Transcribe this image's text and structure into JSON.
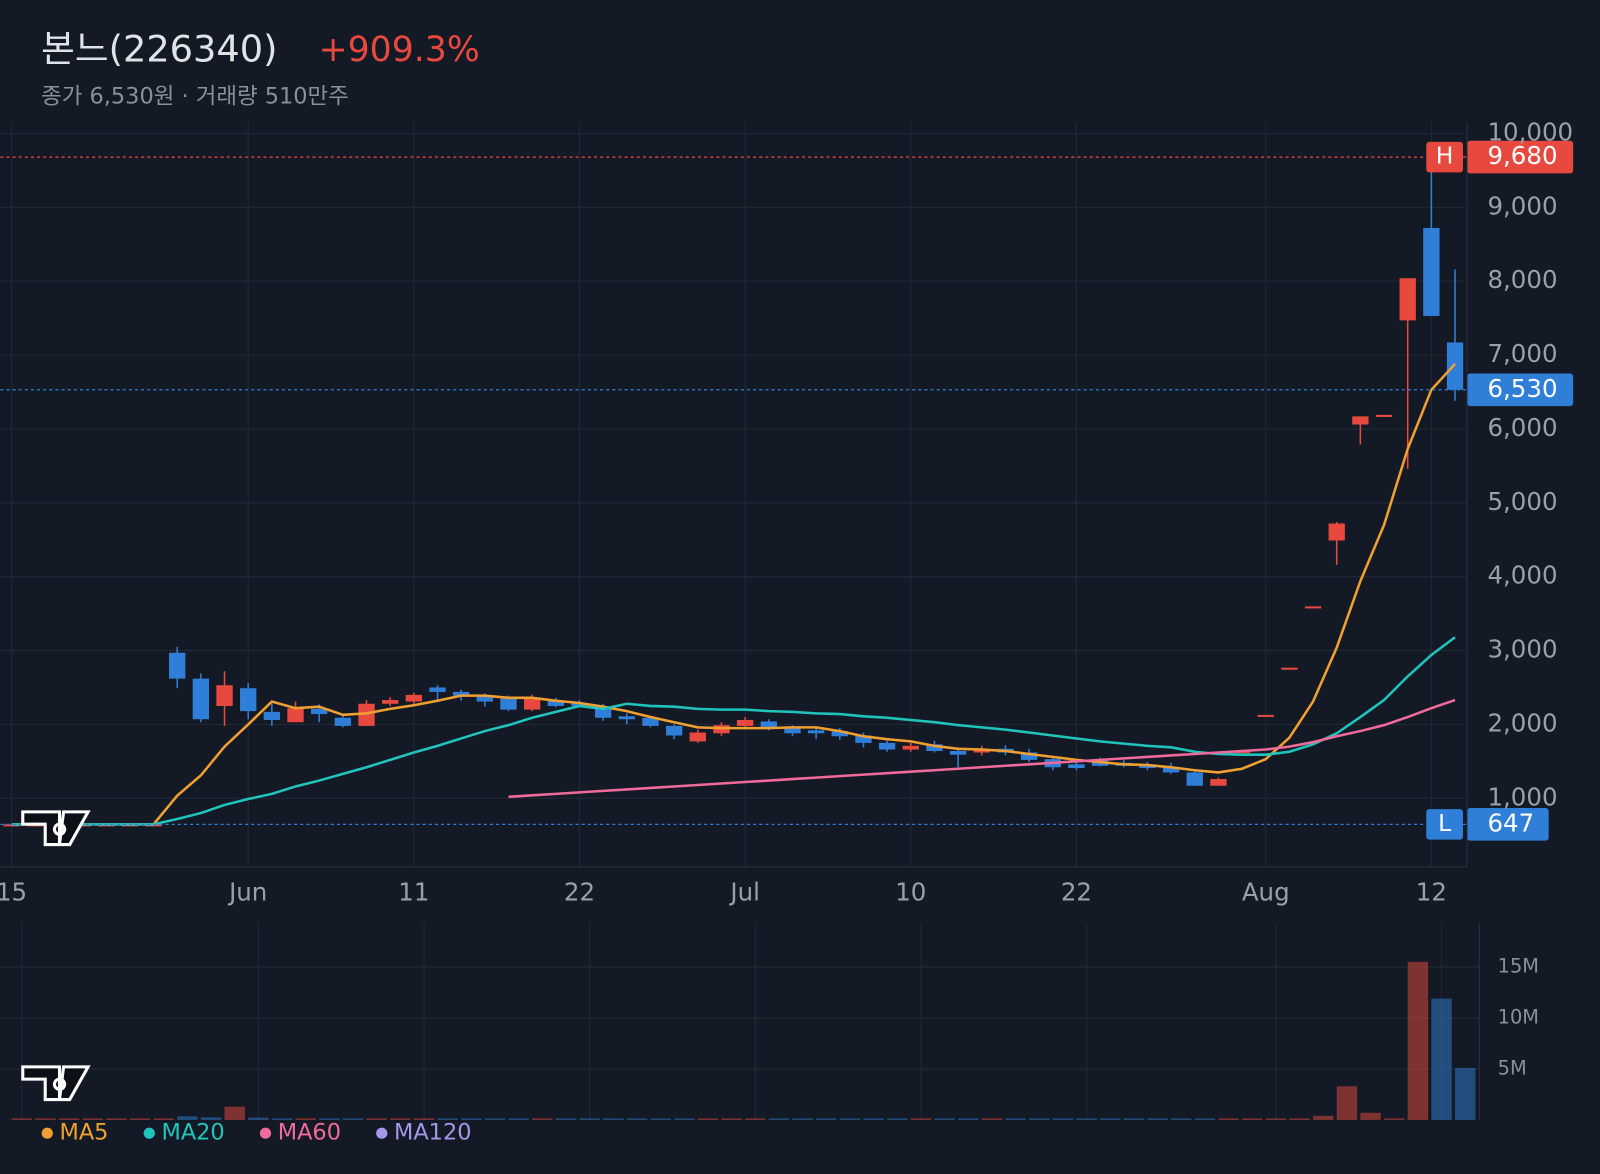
{
  "chart_data": [
    {
      "type": "candlestick",
      "title": "본느(226340)",
      "change": "+909.3%",
      "subtitle": "종가 6,530원 · 거래량 510만주",
      "categories": [
        "15",
        null,
        null,
        null,
        null,
        null,
        null,
        null,
        null,
        null,
        "Jun",
        null,
        null,
        null,
        null,
        null,
        null,
        "11",
        null,
        null,
        null,
        null,
        null,
        null,
        "22",
        null,
        null,
        null,
        null,
        null,
        null,
        "Jul",
        null,
        null,
        null,
        null,
        null,
        null,
        "10",
        null,
        null,
        null,
        null,
        null,
        null,
        "22",
        null,
        null,
        null,
        null,
        null,
        null,
        null,
        "Aug",
        null,
        null,
        null,
        null,
        null,
        null,
        "12",
        null
      ],
      "open": [
        647,
        647,
        647,
        647,
        647,
        647,
        647,
        2970,
        2620,
        2250,
        2490,
        2170,
        2030,
        2210,
        2090,
        1980,
        2280,
        2310,
        2500,
        2440,
        2380,
        2350,
        2200,
        2320,
        2290,
        2240,
        2110,
        2090,
        1980,
        1770,
        1880,
        1980,
        2040,
        1950,
        1920,
        1910,
        1850,
        1750,
        1660,
        1730,
        1640,
        1620,
        1670,
        1620,
        1530,
        1460,
        1510,
        1480,
        1460,
        1420,
        1350,
        1170,
        1638,
        2129,
        2768,
        3598,
        4490,
        6060,
        6170,
        7470,
        8720,
        7170
      ],
      "high": [
        647,
        647,
        647,
        647,
        647,
        647,
        647,
        3050,
        2690,
        2720,
        2560,
        2280,
        2310,
        2270,
        2140,
        2330,
        2370,
        2430,
        2530,
        2470,
        2420,
        2390,
        2400,
        2360,
        2330,
        2280,
        2150,
        2110,
        2000,
        1930,
        2030,
        2100,
        2070,
        1990,
        1960,
        1950,
        1890,
        1780,
        1750,
        1780,
        1680,
        1710,
        1720,
        1670,
        1570,
        1500,
        1550,
        1520,
        1490,
        1480,
        1380,
        1280,
        1638,
        2129,
        2768,
        3598,
        4740,
        6170,
        6190,
        8040,
        9680,
        8160
      ],
      "low": [
        647,
        647,
        647,
        647,
        647,
        647,
        647,
        2490,
        2030,
        1980,
        2070,
        1980,
        2030,
        2030,
        1960,
        1980,
        2250,
        2280,
        2320,
        2320,
        2240,
        2180,
        2180,
        2230,
        2230,
        2050,
        2000,
        1960,
        1800,
        1750,
        1840,
        1940,
        1920,
        1840,
        1800,
        1790,
        1690,
        1630,
        1630,
        1620,
        1420,
        1580,
        1580,
        1490,
        1380,
        1380,
        1430,
        1420,
        1380,
        1330,
        1170,
        1170,
        1638,
        2129,
        2768,
        3598,
        4160,
        5790,
        6160,
        5460,
        7530,
        6380
      ],
      "close": [
        647,
        647,
        647,
        647,
        647,
        647,
        647,
        2620,
        2070,
        2530,
        2180,
        2060,
        2220,
        2140,
        1980,
        2280,
        2330,
        2400,
        2440,
        2390,
        2310,
        2200,
        2360,
        2250,
        2250,
        2090,
        2070,
        1980,
        1850,
        1890,
        1990,
        2060,
        1950,
        1880,
        1880,
        1840,
        1750,
        1660,
        1710,
        1640,
        1590,
        1670,
        1620,
        1520,
        1420,
        1410,
        1440,
        1440,
        1410,
        1350,
        1170,
        1260,
        1638,
        2129,
        2768,
        3598,
        4720,
        6170,
        6190,
        8040,
        7530,
        6530
      ],
      "up_color": "#e8493f",
      "down_color": "#2f7fd8",
      "ylim": [
        70,
        10150
      ],
      "yticks": [
        {
          "value": 1000,
          "label": "1,000"
        },
        {
          "value": 2000,
          "label": "2,000"
        },
        {
          "value": 3000,
          "label": "3,000"
        },
        {
          "value": 4000,
          "label": "4,000"
        },
        {
          "value": 5000,
          "label": "5,000"
        },
        {
          "value": 6000,
          "label": "6,000"
        },
        {
          "value": 7000,
          "label": "7,000"
        },
        {
          "value": 8000,
          "label": "8,000"
        },
        {
          "value": 9000,
          "label": "9,000"
        },
        {
          "value": 10000,
          "label": "10,000"
        }
      ],
      "grid": true,
      "high_line": {
        "value": 9680,
        "label": "9,680",
        "marker": "H",
        "color": "#e8493f"
      },
      "low_line": {
        "value": 647,
        "label": "647",
        "marker": "L",
        "color": "#2f7fd8"
      },
      "last_line": {
        "value": 6530,
        "label": "6,530",
        "color": "#2f7fd8"
      },
      "series": [
        {
          "name": "MA5",
          "color": "#f0a030",
          "values": [
            647,
            647,
            647,
            647,
            647,
            647,
            647,
            1036,
            1310,
            1700,
            2000,
            2310,
            2220,
            2240,
            2130,
            2150,
            2210,
            2260,
            2320,
            2390,
            2390,
            2360,
            2360,
            2320,
            2290,
            2240,
            2180,
            2100,
            2030,
            1960,
            1950,
            1950,
            1950,
            1960,
            1960,
            1910,
            1840,
            1800,
            1770,
            1710,
            1670,
            1660,
            1640,
            1600,
            1560,
            1520,
            1490,
            1460,
            1450,
            1420,
            1380,
            1350,
            1400,
            1530,
            1820,
            2310,
            3040,
            3940,
            4700,
            5730,
            6530,
            6880
          ]
        },
        {
          "name": "MA20",
          "color": "#20c4bc",
          "values": [
            647,
            647,
            647,
            647,
            647,
            647,
            647,
            720,
            800,
            910,
            990,
            1060,
            1160,
            1240,
            1330,
            1420,
            1520,
            1620,
            1710,
            1810,
            1910,
            1990,
            2090,
            2170,
            2250,
            2210,
            2280,
            2250,
            2240,
            2210,
            2200,
            2200,
            2180,
            2170,
            2150,
            2140,
            2110,
            2090,
            2060,
            2030,
            1990,
            1960,
            1930,
            1890,
            1850,
            1810,
            1770,
            1740,
            1710,
            1690,
            1630,
            1600,
            1590,
            1590,
            1630,
            1730,
            1880,
            2100,
            2330,
            2650,
            2940,
            3180
          ]
        },
        {
          "name": "MA60",
          "color": "#f06a9c",
          "values": [
            null,
            null,
            null,
            null,
            null,
            null,
            null,
            null,
            null,
            null,
            null,
            null,
            null,
            null,
            null,
            null,
            null,
            null,
            null,
            null,
            null,
            1020,
            1040,
            1060,
            1080,
            1100,
            1120,
            1140,
            1160,
            1180,
            1200,
            1220,
            1240,
            1260,
            1280,
            1300,
            1320,
            1340,
            1360,
            1380,
            1400,
            1420,
            1440,
            1460,
            1480,
            1500,
            1520,
            1540,
            1560,
            1580,
            1600,
            1620,
            1640,
            1660,
            1700,
            1760,
            1840,
            1910,
            1990,
            2100,
            2220,
            2330
          ]
        },
        {
          "name": "MA120",
          "color": "#a596e8",
          "values": [
            null,
            null,
            null,
            null,
            null,
            null,
            null,
            null,
            null,
            null,
            null,
            null,
            null,
            null,
            null,
            null,
            null,
            null,
            null,
            null,
            null,
            null,
            null,
            null,
            null,
            null,
            null,
            null,
            null,
            null,
            null,
            null,
            null,
            null,
            null,
            null,
            null,
            null,
            null,
            null,
            null,
            null,
            null,
            null,
            null,
            null,
            null,
            null,
            null,
            null,
            null,
            null,
            null,
            null,
            null,
            null,
            null,
            null,
            null,
            null,
            null,
            null
          ]
        }
      ]
    },
    {
      "type": "bar",
      "values": [
        0,
        0,
        0,
        0,
        0,
        0,
        0,
        350000,
        250000,
        1300000,
        220000,
        150000,
        120000,
        100000,
        90000,
        110000,
        100000,
        90000,
        80000,
        80000,
        80000,
        90000,
        80000,
        70000,
        70000,
        80000,
        70000,
        70000,
        80000,
        70000,
        70000,
        80000,
        70000,
        60000,
        60000,
        60000,
        70000,
        60000,
        60000,
        60000,
        80000,
        60000,
        60000,
        70000,
        70000,
        60000,
        60000,
        60000,
        60000,
        70000,
        90000,
        80000,
        100000,
        120000,
        150000,
        400000,
        3300000,
        700000,
        100000,
        15500000,
        11900000,
        5100000
      ],
      "ylim": [
        0,
        19300000
      ],
      "yticks": [
        {
          "value": 5000000,
          "label": "5M"
        },
        {
          "value": 10000000,
          "label": "10M"
        },
        {
          "value": 15000000,
          "label": "15M"
        }
      ]
    }
  ]
}
